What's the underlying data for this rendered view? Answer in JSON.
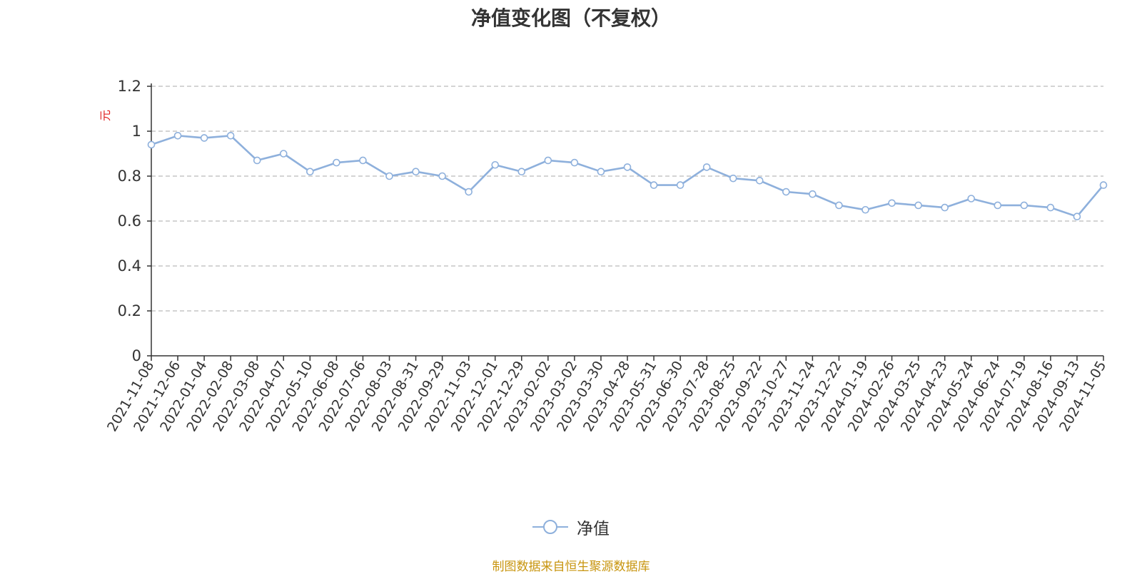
{
  "chart_data": {
    "type": "line",
    "title": "净值变化图（不复权）",
    "ylabel": "元",
    "ylim": [
      0,
      1.2
    ],
    "yticks": [
      "0",
      "0.2",
      "0.4",
      "0.6",
      "0.8",
      "1",
      "1.2"
    ],
    "grid": true,
    "legend_placement": "bottom-center",
    "x": [
      "2021-11-08",
      "2021-12-06",
      "2022-01-04",
      "2022-02-08",
      "2022-03-08",
      "2022-04-07",
      "2022-05-10",
      "2022-06-08",
      "2022-07-06",
      "2022-08-03",
      "2022-08-31",
      "2022-09-29",
      "2022-11-03",
      "2022-12-01",
      "2022-12-29",
      "2023-02-02",
      "2023-03-02",
      "2023-03-30",
      "2023-04-28",
      "2023-05-31",
      "2023-06-30",
      "2023-07-28",
      "2023-08-25",
      "2023-09-22",
      "2023-10-27",
      "2023-11-24",
      "2023-12-22",
      "2024-01-19",
      "2024-02-26",
      "2024-03-25",
      "2024-04-23",
      "2024-05-24",
      "2024-06-24",
      "2024-07-19",
      "2024-08-16",
      "2024-09-13",
      "2024-11-05"
    ],
    "series": [
      {
        "name": "净值",
        "color": "#8eb0dc",
        "values": [
          0.94,
          0.98,
          0.97,
          0.98,
          0.87,
          0.9,
          0.82,
          0.86,
          0.87,
          0.8,
          0.82,
          0.8,
          0.73,
          0.85,
          0.82,
          0.87,
          0.86,
          0.82,
          0.84,
          0.76,
          0.76,
          0.84,
          0.79,
          0.78,
          0.73,
          0.72,
          0.67,
          0.65,
          0.68,
          0.67,
          0.66,
          0.7,
          0.67,
          0.67,
          0.66,
          0.62,
          0.76
        ]
      }
    ]
  },
  "legend": {
    "label": "净值"
  },
  "source": {
    "text": "制图数据来自恒生聚源数据库",
    "color": "#c8950f"
  },
  "unit_color": "#e02020"
}
